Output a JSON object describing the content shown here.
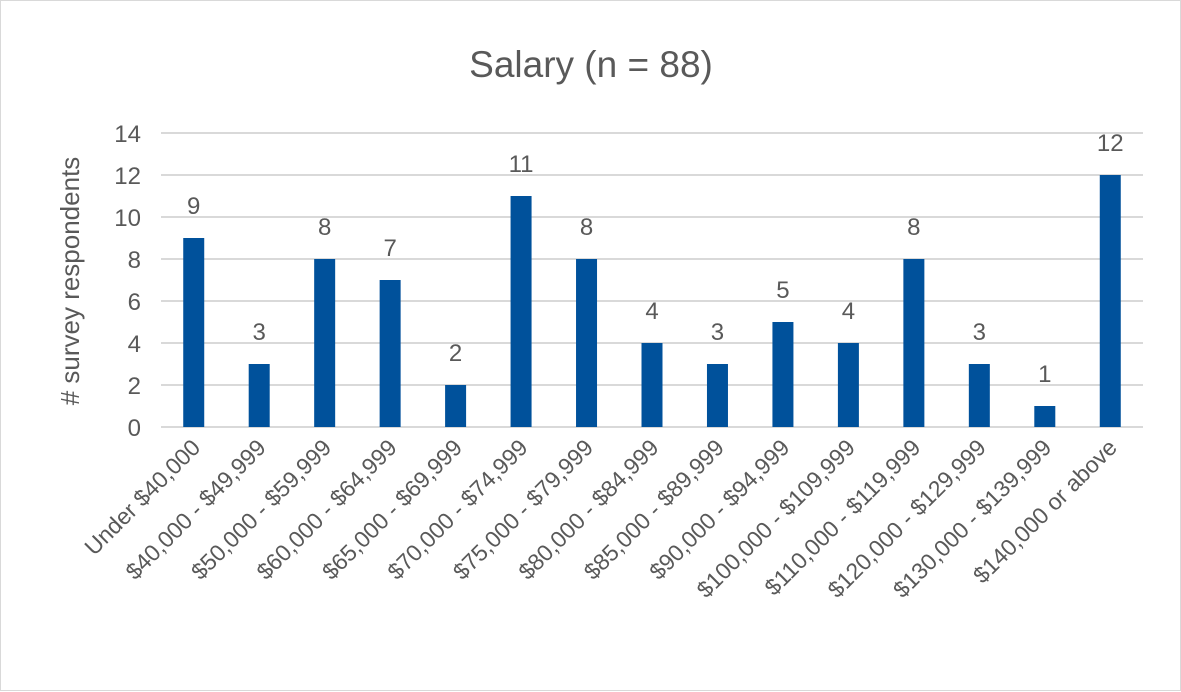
{
  "chart_data": {
    "type": "bar",
    "title": "Salary (n = 88)",
    "xlabel": "",
    "ylabel": "# survey respondents",
    "ylim": [
      0,
      14
    ],
    "yticks": [
      0,
      2,
      4,
      6,
      8,
      10,
      12,
      14
    ],
    "grid": true,
    "legend": "none",
    "bar_color": "#00519b",
    "categories": [
      "Under $40,000",
      "$40,000 - $49,999",
      "$50,000 - $59,999",
      "$60,000 - $64,999",
      "$65,000 - $69,999",
      "$70,000 - $74,999",
      "$75,000 - $79,999",
      "$80,000 - $84,999",
      "$85,000 - $89,999",
      "$90,000 - $94,999",
      "$100,000 - $109,999",
      "$110,000 - $119,999",
      "$120,000 - $129,999",
      "$130,000 - $139,999",
      "$140,000 or above"
    ],
    "values": [
      9,
      3,
      8,
      7,
      2,
      11,
      8,
      4,
      3,
      5,
      4,
      8,
      3,
      1,
      12
    ]
  }
}
